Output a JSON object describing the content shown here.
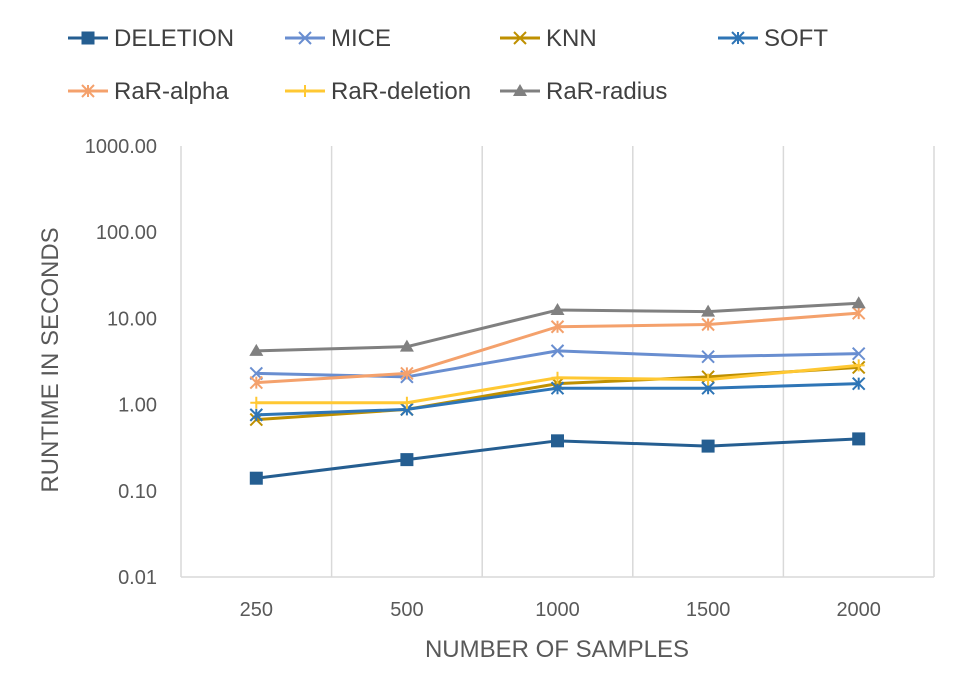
{
  "chart_data": {
    "type": "line",
    "title": "",
    "xlabel": "NUMBER OF SAMPLES",
    "ylabel": "RUNTIME IN SECONDS",
    "yscale": "log",
    "ylim": [
      0.01,
      1000
    ],
    "grid": "vertical",
    "legend_position": "top",
    "categories": [
      "250",
      "500",
      "1000",
      "1500",
      "2000"
    ],
    "y_ticks": [
      "0.01",
      "0.10",
      "1.00",
      "10.00",
      "100.00",
      "1000.00"
    ],
    "series": [
      {
        "name": "DELETION",
        "color": "#255E91",
        "marker": "square",
        "values": [
          0.14,
          0.23,
          0.38,
          0.33,
          0.4
        ]
      },
      {
        "name": "MICE",
        "color": "#698ED0",
        "marker": "x",
        "values": [
          2.3,
          2.1,
          4.2,
          3.6,
          3.9
        ]
      },
      {
        "name": "KNN",
        "color": "#BF9000",
        "marker": "x",
        "values": [
          0.67,
          0.88,
          1.75,
          2.1,
          2.7
        ]
      },
      {
        "name": "SOFT",
        "color": "#2E75B6",
        "marker": "asterisk",
        "values": [
          0.76,
          0.88,
          1.55,
          1.55,
          1.75
        ]
      },
      {
        "name": "RaR-alpha",
        "color": "#F4A16C",
        "marker": "asterisk",
        "values": [
          1.8,
          2.3,
          8.0,
          8.5,
          11.5
        ]
      },
      {
        "name": "RaR-deletion",
        "color": "#FFC833",
        "marker": "plus",
        "values": [
          1.05,
          1.05,
          2.05,
          1.95,
          2.85
        ]
      },
      {
        "name": "RaR-radius",
        "color": "#808080",
        "marker": "triangle",
        "values": [
          4.2,
          4.7,
          12.5,
          12.0,
          15.0
        ]
      }
    ]
  }
}
